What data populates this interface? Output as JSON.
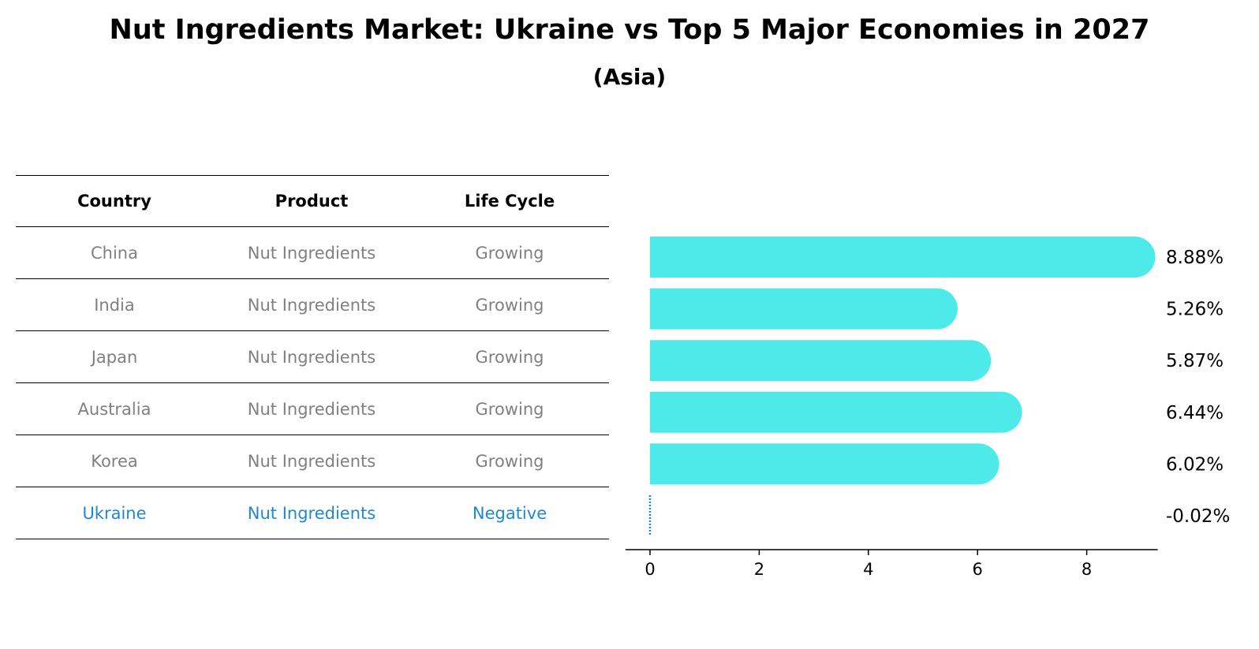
{
  "title": "Nut Ingredients Market: Ukraine vs Top 5 Major Economies in 2027",
  "subtitle": "(Asia)",
  "table": {
    "headers": [
      "Country",
      "Product",
      "Life Cycle"
    ],
    "rows": [
      {
        "country": "China",
        "product": "Nut Ingredients",
        "life_cycle": "Growing"
      },
      {
        "country": "India",
        "product": "Nut Ingredients",
        "life_cycle": "Growing"
      },
      {
        "country": "Japan",
        "product": "Nut Ingredients",
        "life_cycle": "Growing"
      },
      {
        "country": "Australia",
        "product": "Nut Ingredients",
        "life_cycle": "Growing"
      },
      {
        "country": "Korea",
        "product": "Nut Ingredients",
        "life_cycle": "Growing"
      },
      {
        "country": "Ukraine",
        "product": "Nut Ingredients",
        "life_cycle": "Negative"
      }
    ]
  },
  "colors": {
    "bar": "#4eeaea",
    "highlight": "#1f88d4",
    "muted": "#808080"
  },
  "chart_data": {
    "type": "bar",
    "orientation": "horizontal",
    "categories": [
      "China",
      "India",
      "Japan",
      "Australia",
      "Korea",
      "Ukraine"
    ],
    "values": [
      8.88,
      5.26,
      5.87,
      6.44,
      6.02,
      -0.02
    ],
    "value_labels": [
      "8.88%",
      "5.26%",
      "5.87%",
      "6.44%",
      "6.02%",
      "-0.02%"
    ],
    "xticks": [
      0,
      2,
      4,
      6,
      8
    ],
    "xlim": [
      -0.45,
      9.3
    ],
    "grid": false
  }
}
